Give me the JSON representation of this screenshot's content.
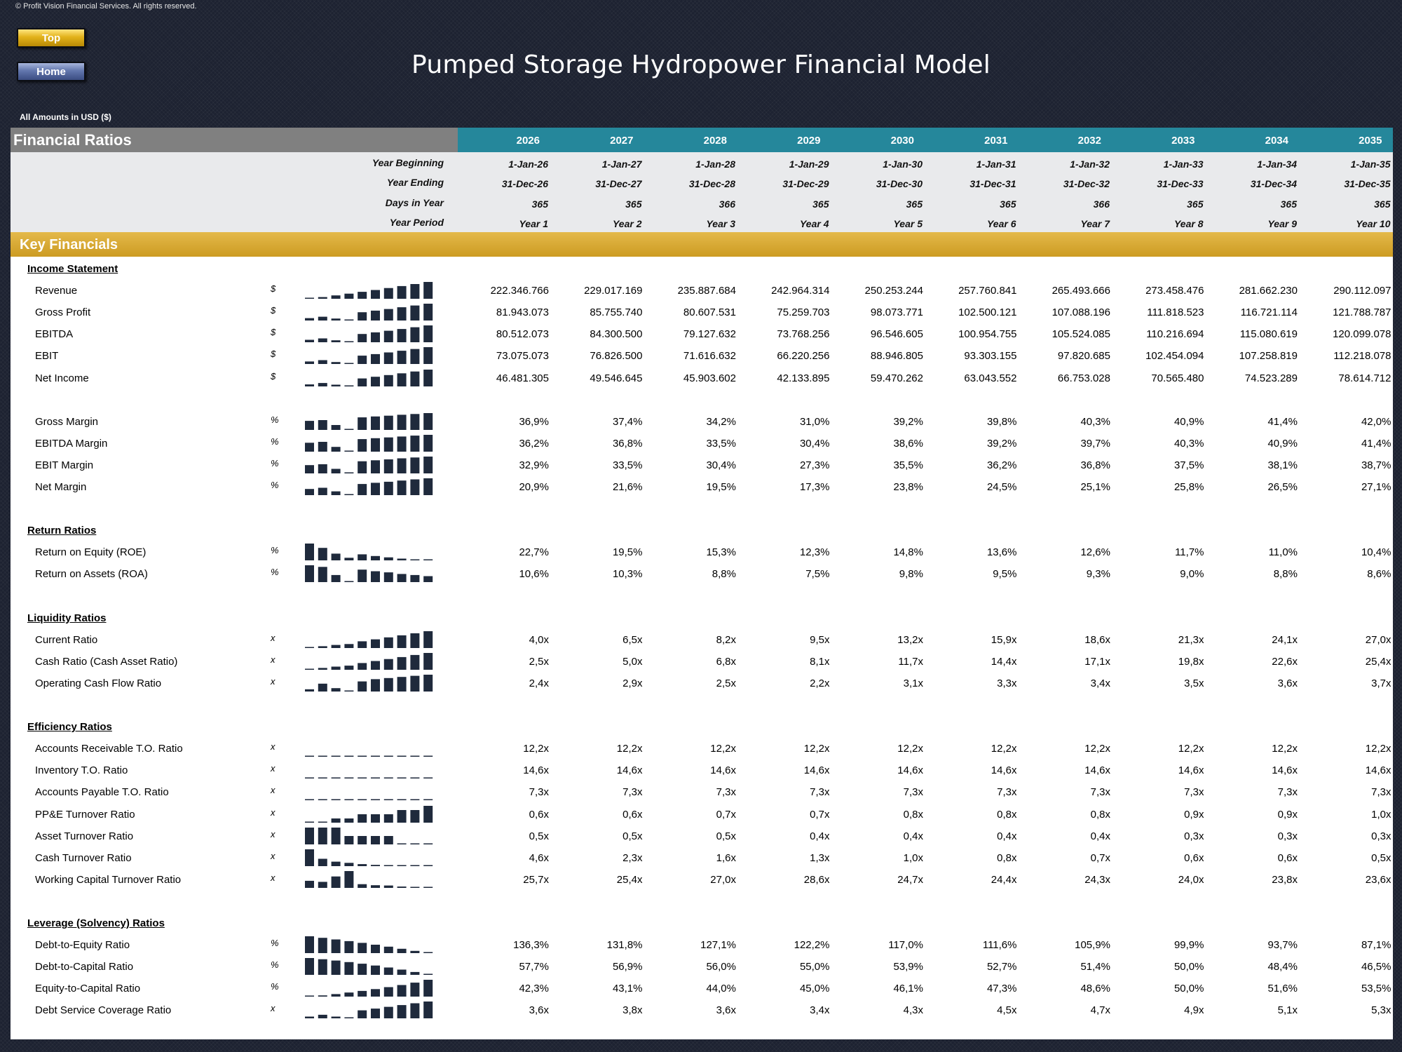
{
  "copyright": "© Profit Vision Financial Services. All rights reserved.",
  "nav": {
    "top_label": "Top",
    "home_label": "Home"
  },
  "title": "Pumped Storage Hydropower Financial Model",
  "currency_note": "All Amounts in  USD ($)",
  "section_title": "Financial Ratios",
  "years": [
    "2026",
    "2027",
    "2028",
    "2029",
    "2030",
    "2031",
    "2032",
    "2033",
    "2034",
    "2035"
  ],
  "timeline": {
    "labels": [
      "Year Beginning",
      "Year Ending",
      "Days in Year",
      "Year Period"
    ],
    "rows": [
      [
        "1-Jan-26",
        "1-Jan-27",
        "1-Jan-28",
        "1-Jan-29",
        "1-Jan-30",
        "1-Jan-31",
        "1-Jan-32",
        "1-Jan-33",
        "1-Jan-34",
        "1-Jan-35"
      ],
      [
        "31-Dec-26",
        "31-Dec-27",
        "31-Dec-28",
        "31-Dec-29",
        "31-Dec-30",
        "31-Dec-31",
        "31-Dec-32",
        "31-Dec-33",
        "31-Dec-34",
        "31-Dec-35"
      ],
      [
        "365",
        "365",
        "366",
        "365",
        "365",
        "365",
        "366",
        "365",
        "365",
        "365"
      ],
      [
        "Year 1",
        "Year 2",
        "Year 3",
        "Year 4",
        "Year 5",
        "Year 6",
        "Year 7",
        "Year 8",
        "Year 9",
        "Year 10"
      ]
    ]
  },
  "key_banner": "Key Financials",
  "groups": [
    {
      "title": "Income Statement",
      "rows": [
        {
          "label": "Revenue",
          "unit": "$",
          "values": [
            "222.346.766",
            "229.017.169",
            "235.887.684",
            "242.964.314",
            "250.253.244",
            "257.760.841",
            "265.493.666",
            "273.458.476",
            "281.662.230",
            "290.112.097"
          ]
        },
        {
          "label": "Gross Profit",
          "unit": "$",
          "values": [
            "81.943.073",
            "85.755.740",
            "80.607.531",
            "75.259.703",
            "98.073.771",
            "102.500.121",
            "107.088.196",
            "111.818.523",
            "116.721.114",
            "121.788.787"
          ]
        },
        {
          "label": "EBITDA",
          "unit": "$",
          "values": [
            "80.512.073",
            "84.300.500",
            "79.127.632",
            "73.768.256",
            "96.546.605",
            "100.954.755",
            "105.524.085",
            "110.216.694",
            "115.080.619",
            "120.099.078"
          ]
        },
        {
          "label": "EBIT",
          "unit": "$",
          "values": [
            "73.075.073",
            "76.826.500",
            "71.616.632",
            "66.220.256",
            "88.946.805",
            "93.303.155",
            "97.820.685",
            "102.454.094",
            "107.258.819",
            "112.218.078"
          ]
        },
        {
          "label": "Net Income",
          "unit": "$",
          "values": [
            "46.481.305",
            "49.546.645",
            "45.903.602",
            "42.133.895",
            "59.470.262",
            "63.043.552",
            "66.753.028",
            "70.565.480",
            "74.523.289",
            "78.614.712"
          ]
        },
        {
          "spacer": true
        },
        {
          "label": "Gross Margin",
          "unit": "%",
          "values": [
            "36,9%",
            "37,4%",
            "34,2%",
            "31,0%",
            "39,2%",
            "39,8%",
            "40,3%",
            "40,9%",
            "41,4%",
            "42,0%"
          ]
        },
        {
          "label": "EBITDA Margin",
          "unit": "%",
          "values": [
            "36,2%",
            "36,8%",
            "33,5%",
            "30,4%",
            "38,6%",
            "39,2%",
            "39,7%",
            "40,3%",
            "40,9%",
            "41,4%"
          ]
        },
        {
          "label": "EBIT Margin",
          "unit": "%",
          "values": [
            "32,9%",
            "33,5%",
            "30,4%",
            "27,3%",
            "35,5%",
            "36,2%",
            "36,8%",
            "37,5%",
            "38,1%",
            "38,7%"
          ]
        },
        {
          "label": "Net Margin",
          "unit": "%",
          "values": [
            "20,9%",
            "21,6%",
            "19,5%",
            "17,3%",
            "23,8%",
            "24,5%",
            "25,1%",
            "25,8%",
            "26,5%",
            "27,1%"
          ]
        }
      ]
    },
    {
      "title": "Return Ratios",
      "rows": [
        {
          "label": "Return on Equity (ROE)",
          "unit": "%",
          "values": [
            "22,7%",
            "19,5%",
            "15,3%",
            "12,3%",
            "14,8%",
            "13,6%",
            "12,6%",
            "11,7%",
            "11,0%",
            "10,4%"
          ]
        },
        {
          "label": "Return on Assets (ROA)",
          "unit": "%",
          "values": [
            "10,6%",
            "10,3%",
            "8,8%",
            "7,5%",
            "9,8%",
            "9,5%",
            "9,3%",
            "9,0%",
            "8,8%",
            "8,6%"
          ]
        }
      ]
    },
    {
      "title": "Liquidity Ratios",
      "rows": [
        {
          "label": "Current Ratio",
          "unit": "x",
          "values": [
            "4,0x",
            "6,5x",
            "8,2x",
            "9,5x",
            "13,2x",
            "15,9x",
            "18,6x",
            "21,3x",
            "24,1x",
            "27,0x"
          ]
        },
        {
          "label": "Cash Ratio (Cash Asset Ratio)",
          "unit": "x",
          "values": [
            "2,5x",
            "5,0x",
            "6,8x",
            "8,1x",
            "11,7x",
            "14,4x",
            "17,1x",
            "19,8x",
            "22,6x",
            "25,4x"
          ]
        },
        {
          "label": "Operating Cash Flow Ratio",
          "unit": "x",
          "values": [
            "2,4x",
            "2,9x",
            "2,5x",
            "2,2x",
            "3,1x",
            "3,3x",
            "3,4x",
            "3,5x",
            "3,6x",
            "3,7x"
          ]
        }
      ]
    },
    {
      "title": "Efficiency Ratios",
      "rows": [
        {
          "label": "Accounts Receivable T.O. Ratio",
          "unit": "x",
          "values": [
            "12,2x",
            "12,2x",
            "12,2x",
            "12,2x",
            "12,2x",
            "12,2x",
            "12,2x",
            "12,2x",
            "12,2x",
            "12,2x"
          ]
        },
        {
          "label": "Inventory T.O. Ratio",
          "unit": "x",
          "values": [
            "14,6x",
            "14,6x",
            "14,6x",
            "14,6x",
            "14,6x",
            "14,6x",
            "14,6x",
            "14,6x",
            "14,6x",
            "14,6x"
          ]
        },
        {
          "label": "Accounts Payable T.O. Ratio",
          "unit": "x",
          "values": [
            "7,3x",
            "7,3x",
            "7,3x",
            "7,3x",
            "7,3x",
            "7,3x",
            "7,3x",
            "7,3x",
            "7,3x",
            "7,3x"
          ]
        },
        {
          "label": "PP&E Turnover Ratio",
          "unit": "x",
          "values": [
            "0,6x",
            "0,6x",
            "0,7x",
            "0,7x",
            "0,8x",
            "0,8x",
            "0,8x",
            "0,9x",
            "0,9x",
            "1,0x"
          ]
        },
        {
          "label": "Asset Turnover Ratio",
          "unit": "x",
          "values": [
            "0,5x",
            "0,5x",
            "0,5x",
            "0,4x",
            "0,4x",
            "0,4x",
            "0,4x",
            "0,3x",
            "0,3x",
            "0,3x"
          ]
        },
        {
          "label": "Cash Turnover Ratio",
          "unit": "x",
          "values": [
            "4,6x",
            "2,3x",
            "1,6x",
            "1,3x",
            "1,0x",
            "0,8x",
            "0,7x",
            "0,6x",
            "0,6x",
            "0,5x"
          ]
        },
        {
          "label": "Working Capital Turnover Ratio",
          "unit": "x",
          "values": [
            "25,7x",
            "25,4x",
            "27,0x",
            "28,6x",
            "24,7x",
            "24,4x",
            "24,3x",
            "24,0x",
            "23,8x",
            "23,6x"
          ]
        }
      ]
    },
    {
      "title": "Leverage (Solvency) Ratios",
      "rows": [
        {
          "label": "Debt-to-Equity Ratio",
          "unit": "%",
          "values": [
            "136,3%",
            "131,8%",
            "127,1%",
            "122,2%",
            "117,0%",
            "111,6%",
            "105,9%",
            "99,9%",
            "93,7%",
            "87,1%"
          ]
        },
        {
          "label": "Debt-to-Capital Ratio",
          "unit": "%",
          "values": [
            "57,7%",
            "56,9%",
            "56,0%",
            "55,0%",
            "53,9%",
            "52,7%",
            "51,4%",
            "50,0%",
            "48,4%",
            "46,5%"
          ]
        },
        {
          "label": "Equity-to-Capital Ratio",
          "unit": "%",
          "values": [
            "42,3%",
            "43,1%",
            "44,0%",
            "45,0%",
            "46,1%",
            "47,3%",
            "48,6%",
            "50,0%",
            "51,6%",
            "53,5%"
          ]
        },
        {
          "label": "Debt Service Coverage Ratio",
          "unit": "x",
          "values": [
            "3,6x",
            "3,8x",
            "3,6x",
            "3,4x",
            "4,3x",
            "4,5x",
            "4,7x",
            "4,9x",
            "5,1x",
            "5,3x"
          ]
        }
      ]
    }
  ],
  "colors": {
    "background": "#1d2231",
    "header_gray": "#808080",
    "header_teal": "#25879b",
    "banner_gold": "#d4a52c",
    "timeline_bg": "#e9eaec",
    "sparkline": "#1f2a3c"
  }
}
